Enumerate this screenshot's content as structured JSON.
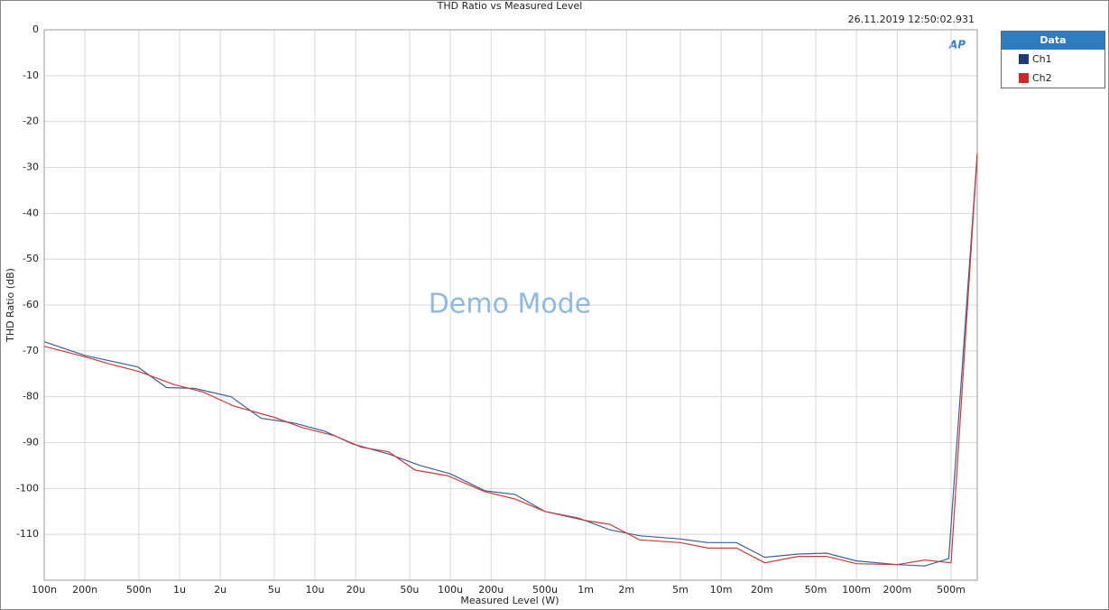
{
  "chart_data": {
    "type": "line",
    "title": "THD Ratio vs Measured Level",
    "timestamp": "26.11.2019 12:50:02.931",
    "watermark": "Demo Mode",
    "logo": "AP",
    "x_label": "Measured Level (W)",
    "y_label": "THD Ratio (dB)",
    "legend_title": "Data",
    "x_scale": "log",
    "grid": true,
    "xlim": [
      1e-07,
      0.78
    ],
    "ylim": [
      -120,
      0
    ],
    "yticks": [
      0,
      -10,
      -20,
      -30,
      -40,
      -50,
      -60,
      -70,
      -80,
      -90,
      -100,
      -110
    ],
    "xticks": [
      {
        "value": 1e-07,
        "label": "100n"
      },
      {
        "value": 2e-07,
        "label": "200n"
      },
      {
        "value": 5e-07,
        "label": "500n"
      },
      {
        "value": 1e-06,
        "label": "1u"
      },
      {
        "value": 2e-06,
        "label": "2u"
      },
      {
        "value": 5e-06,
        "label": "5u"
      },
      {
        "value": 1e-05,
        "label": "10u"
      },
      {
        "value": 2e-05,
        "label": "20u"
      },
      {
        "value": 5e-05,
        "label": "50u"
      },
      {
        "value": 0.0001,
        "label": "100u"
      },
      {
        "value": 0.0002,
        "label": "200u"
      },
      {
        "value": 0.0005,
        "label": "500u"
      },
      {
        "value": 0.001,
        "label": "1m"
      },
      {
        "value": 0.002,
        "label": "2m"
      },
      {
        "value": 0.005,
        "label": "5m"
      },
      {
        "value": 0.01,
        "label": "10m"
      },
      {
        "value": 0.02,
        "label": "20m"
      },
      {
        "value": 0.05,
        "label": "50m"
      },
      {
        "value": 0.1,
        "label": "100m"
      },
      {
        "value": 0.2,
        "label": "200m"
      },
      {
        "value": 0.5,
        "label": "500m"
      }
    ],
    "series": [
      {
        "name": "Ch1",
        "color": "#3f5f9c",
        "legend_color": "#1f3a7a",
        "x": [
          1e-07,
          2e-07,
          4.9e-07,
          8e-07,
          1.3e-06,
          2.4e-06,
          4e-06,
          6.9e-06,
          1.18e-05,
          1.9e-05,
          3.5e-05,
          6e-05,
          0.0001,
          0.00018,
          0.0003,
          0.0005,
          0.0009,
          0.0015,
          0.0025,
          0.005,
          0.008,
          0.013,
          0.021,
          0.037,
          0.06,
          0.1,
          0.2,
          0.32,
          0.48,
          0.78
        ],
        "values": [
          -68,
          -71,
          -73.5,
          -78,
          -78.2,
          -80,
          -84.7,
          -85.7,
          -87.5,
          -90.3,
          -92.5,
          -95,
          -96.8,
          -100.5,
          -101.3,
          -105,
          -106.5,
          -109,
          -110.3,
          -111,
          -111.8,
          -111.8,
          -115,
          -114.3,
          -114.1,
          -115.8,
          -116.6,
          -116.9,
          -115.3,
          -27
        ]
      },
      {
        "name": "Ch2",
        "color": "#cc3a3a",
        "legend_color": "#cc2a2a",
        "x": [
          1e-07,
          2e-07,
          3e-07,
          5e-07,
          9e-07,
          1.5e-06,
          2.5e-06,
          5e-06,
          8e-06,
          1.4e-05,
          2.2e-05,
          3.5e-05,
          5.5e-05,
          9.5e-05,
          0.00018,
          0.0003,
          0.0005,
          0.001,
          0.0015,
          0.0025,
          0.005,
          0.008,
          0.013,
          0.021,
          0.037,
          0.06,
          0.1,
          0.2,
          0.32,
          0.5,
          0.78
        ],
        "values": [
          -69,
          -71.3,
          -72.8,
          -74.5,
          -77.3,
          -79,
          -82,
          -84.5,
          -86.7,
          -88.5,
          -91,
          -92,
          -96,
          -97.2,
          -100.7,
          -102.3,
          -105,
          -107,
          -107.8,
          -111.2,
          -111.8,
          -113,
          -113,
          -116.2,
          -114.8,
          -114.8,
          -116.4,
          -116.6,
          -115.6,
          -116.2,
          -27
        ]
      }
    ]
  }
}
